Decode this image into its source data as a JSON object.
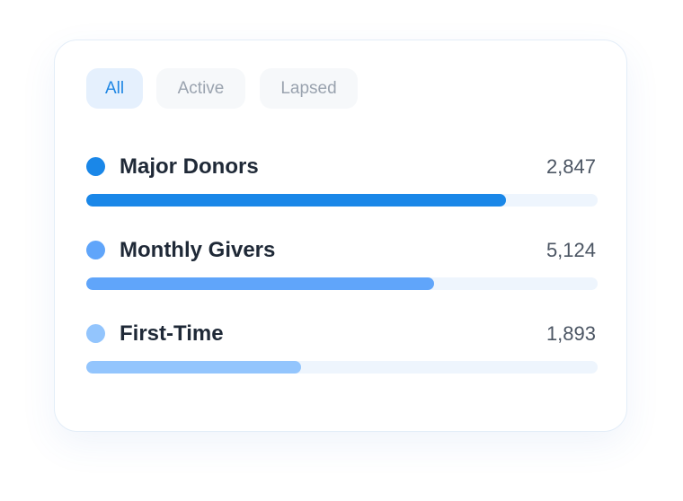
{
  "tabs": {
    "labels": [
      "All",
      "Active",
      "Lapsed"
    ],
    "active": 0
  },
  "items": [
    {
      "name": "Major Donors",
      "count": "2,847",
      "color": "#1a87e8",
      "fill": 82
    },
    {
      "name": "Monthly Givers",
      "count": "5,124",
      "color": "#60a5fa",
      "fill": 68
    },
    {
      "name": "First-Time",
      "count": "1,893",
      "color": "#93c5fd",
      "fill": 42
    }
  ]
}
